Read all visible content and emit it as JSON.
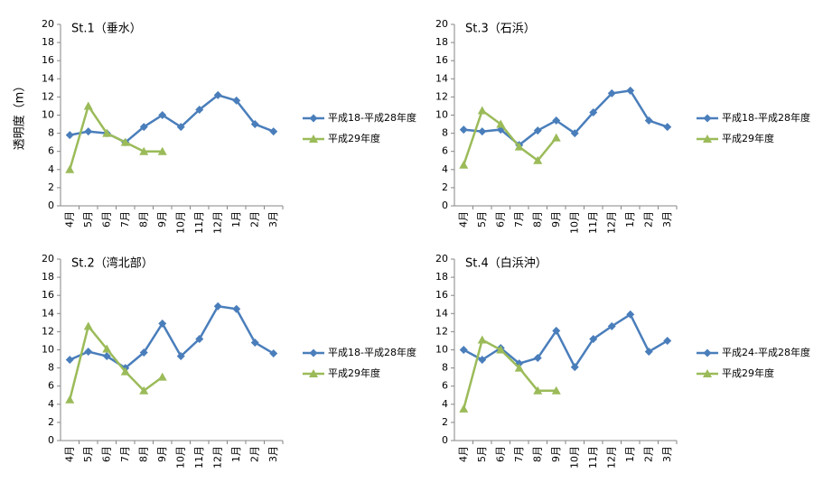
{
  "chart_data": [
    {
      "type": "line",
      "title": "St.1（垂水）",
      "ylabel": "透明度（m）",
      "categories": [
        "4月",
        "5月",
        "6月",
        "7月",
        "8月",
        "9月",
        "10月",
        "11月",
        "12月",
        "1月",
        "2月",
        "3月"
      ],
      "series": [
        {
          "name": "平成18-平成28年度",
          "color": "#4a7ebb",
          "marker": "diamond",
          "values": [
            7.8,
            8.2,
            8.0,
            7.0,
            8.7,
            10.0,
            8.7,
            10.6,
            12.2,
            11.6,
            9.0,
            8.2
          ]
        },
        {
          "name": "平成29年度",
          "color": "#9bbb59",
          "marker": "triangle",
          "values": [
            4.0,
            11.0,
            8.0,
            7.0,
            6.0,
            6.0,
            null,
            null,
            null,
            null,
            null,
            null
          ]
        }
      ],
      "ylim": [
        0,
        20
      ],
      "yticks": [
        0,
        2,
        4,
        6,
        8,
        10,
        12,
        14,
        16,
        18,
        20
      ],
      "legend": "right"
    },
    {
      "type": "line",
      "title": "St.3（石浜）",
      "categories": [
        "4月",
        "5月",
        "6月",
        "7月",
        "8月",
        "9月",
        "10月",
        "11月",
        "12月",
        "1月",
        "2月",
        "3月"
      ],
      "series": [
        {
          "name": "平成18-平成28年度",
          "color": "#4a7ebb",
          "marker": "diamond",
          "values": [
            8.4,
            8.2,
            8.4,
            6.7,
            8.3,
            9.4,
            8.0,
            10.3,
            12.4,
            12.7,
            9.4,
            8.7
          ]
        },
        {
          "name": "平成29年度",
          "color": "#9bbb59",
          "marker": "triangle",
          "values": [
            4.5,
            10.5,
            9.0,
            6.5,
            5.0,
            7.5,
            null,
            null,
            null,
            null,
            null,
            null
          ]
        }
      ],
      "ylim": [
        0,
        20
      ],
      "yticks": [
        0,
        2,
        4,
        6,
        8,
        10,
        12,
        14,
        16,
        18,
        20
      ],
      "legend": "right"
    },
    {
      "type": "line",
      "title": "St.2（湾北部）",
      "categories": [
        "4月",
        "5月",
        "6月",
        "7月",
        "8月",
        "9月",
        "10月",
        "11月",
        "12月",
        "1月",
        "2月",
        "3月"
      ],
      "series": [
        {
          "name": "平成18-平成28年度",
          "color": "#4a7ebb",
          "marker": "diamond",
          "values": [
            8.9,
            9.8,
            9.3,
            8.0,
            9.7,
            12.9,
            9.3,
            11.2,
            14.8,
            14.5,
            10.8,
            9.6
          ]
        },
        {
          "name": "平成29年度",
          "color": "#9bbb59",
          "marker": "triangle",
          "values": [
            4.5,
            12.6,
            10.1,
            7.6,
            5.5,
            7.0,
            null,
            null,
            null,
            null,
            null,
            null
          ]
        }
      ],
      "ylim": [
        0,
        20
      ],
      "yticks": [
        0,
        2,
        4,
        6,
        8,
        10,
        12,
        14,
        16,
        18,
        20
      ],
      "legend": "right"
    },
    {
      "type": "line",
      "title": "St.4（白浜沖）",
      "categories": [
        "4月",
        "5月",
        "6月",
        "7月",
        "8月",
        "9月",
        "10月",
        "11月",
        "12月",
        "1月",
        "2月",
        "3月"
      ],
      "series": [
        {
          "name": "平成24-平成28年度",
          "color": "#4a7ebb",
          "marker": "diamond",
          "values": [
            10.0,
            8.9,
            10.2,
            8.5,
            9.1,
            12.1,
            8.1,
            11.2,
            12.6,
            13.9,
            9.8,
            11.0
          ]
        },
        {
          "name": "平成29年度",
          "color": "#9bbb59",
          "marker": "triangle",
          "values": [
            3.5,
            11.1,
            10.0,
            8.0,
            5.5,
            5.5,
            null,
            null,
            null,
            null,
            null,
            null
          ]
        }
      ],
      "ylim": [
        0,
        20
      ],
      "yticks": [
        0,
        2,
        4,
        6,
        8,
        10,
        12,
        14,
        16,
        18,
        20
      ],
      "legend": "right"
    }
  ]
}
